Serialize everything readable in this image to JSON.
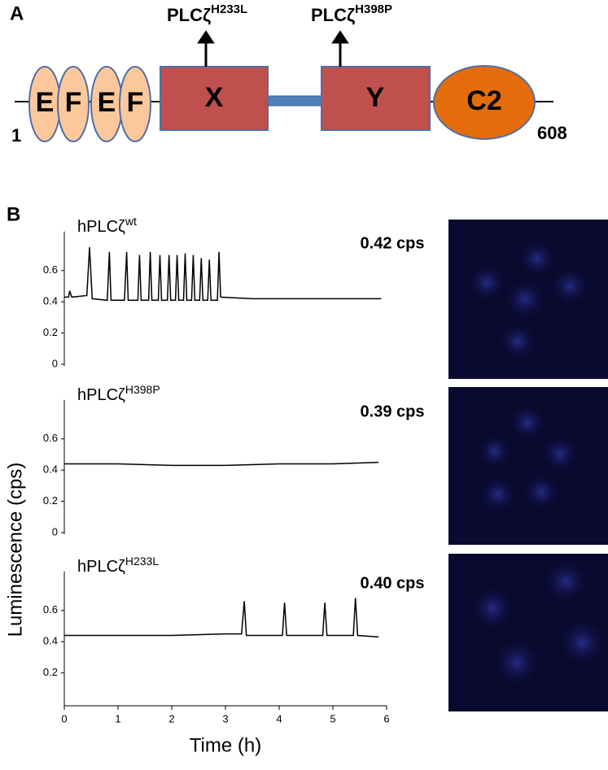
{
  "panel_labels": [
    "A",
    "B"
  ],
  "diagram": {
    "domains": [
      "E",
      "F",
      "E",
      "F",
      "X",
      "Y",
      "C2"
    ],
    "start": "1",
    "end": "608",
    "mutations": [
      {
        "name": "PLCζ",
        "superscript": "H233L"
      },
      {
        "name": "PLCζ",
        "superscript": "H398P"
      }
    ]
  },
  "ylabel": "Luminescence (cps)",
  "chart_data": [
    {
      "type": "line",
      "title": "hPLCζ",
      "title_superscript": "wt",
      "annotation": "0.42 cps",
      "color": "#000000",
      "x": [
        0,
        0.08,
        0.1,
        0.14,
        0.42,
        0.47,
        0.52,
        0.8,
        0.84,
        0.87,
        1.12,
        1.16,
        1.19,
        1.37,
        1.4,
        1.43,
        1.57,
        1.6,
        1.63,
        1.75,
        1.78,
        1.81,
        1.92,
        1.95,
        1.98,
        2.07,
        2.1,
        2.13,
        2.22,
        2.25,
        2.28,
        2.37,
        2.4,
        2.43,
        2.52,
        2.55,
        2.58,
        2.67,
        2.7,
        2.73,
        2.85,
        2.88,
        2.91,
        3.5,
        4,
        4.5,
        5,
        5.5,
        5.9
      ],
      "values": [
        0.43,
        0.43,
        0.47,
        0.43,
        0.44,
        0.75,
        0.42,
        0.41,
        0.72,
        0.41,
        0.41,
        0.72,
        0.41,
        0.41,
        0.7,
        0.41,
        0.41,
        0.72,
        0.41,
        0.41,
        0.7,
        0.41,
        0.41,
        0.7,
        0.41,
        0.41,
        0.7,
        0.41,
        0.41,
        0.71,
        0.41,
        0.41,
        0.7,
        0.41,
        0.41,
        0.68,
        0.41,
        0.41,
        0.67,
        0.41,
        0.41,
        0.72,
        0.43,
        0.42,
        0.42,
        0.42,
        0.42,
        0.42,
        0.42
      ],
      "xlim": [
        0,
        6
      ],
      "ylim": [
        0,
        0.85
      ],
      "yticks": [
        0,
        0.2,
        0.4,
        0.6
      ]
    },
    {
      "type": "line",
      "title": "hPLCζ",
      "title_superscript": "H398P",
      "annotation": "0.39 cps",
      "color": "#000000",
      "x": [
        0,
        1,
        2,
        3,
        4,
        5,
        5.85
      ],
      "values": [
        0.44,
        0.44,
        0.43,
        0.43,
        0.44,
        0.44,
        0.45
      ],
      "xlim": [
        0,
        6
      ],
      "ylim": [
        0,
        0.85
      ],
      "yticks": [
        0,
        0.2,
        0.4,
        0.6
      ]
    },
    {
      "type": "line",
      "title": "hPLCζ",
      "title_superscript": "H233L",
      "annotation": "0.40 cps",
      "color": "#000000",
      "x": [
        0,
        1,
        2,
        3,
        3.3,
        3.35,
        3.39,
        4.06,
        4.1,
        4.14,
        4.81,
        4.85,
        4.89,
        5.38,
        5.42,
        5.46,
        5.85
      ],
      "values": [
        0.44,
        0.44,
        0.44,
        0.45,
        0.45,
        0.66,
        0.44,
        0.44,
        0.65,
        0.44,
        0.44,
        0.65,
        0.44,
        0.44,
        0.68,
        0.44,
        0.43
      ],
      "xlim": [
        0,
        6
      ],
      "ylim": [
        0,
        0.85
      ],
      "yticks": [
        0.2,
        0.4,
        0.6
      ],
      "xticks": [
        0,
        1,
        2,
        3,
        4,
        5,
        6
      ],
      "xlabel": "Time (h)"
    }
  ]
}
